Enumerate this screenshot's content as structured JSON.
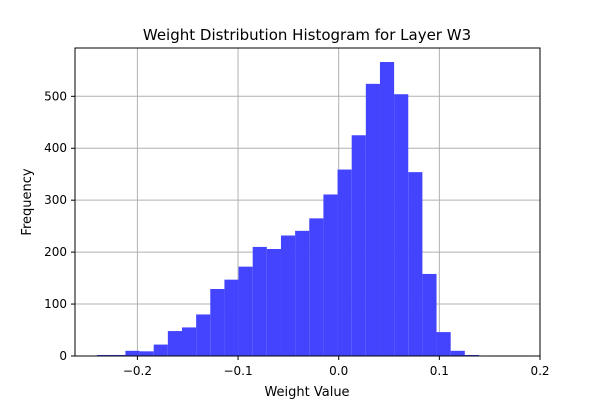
{
  "chart_data": {
    "type": "bar",
    "title": "Weight Distribution Histogram for Layer W3",
    "xlabel": "Weight Value",
    "ylabel": "Frequency",
    "xlim": [
      -0.262,
      0.2
    ],
    "ylim": [
      0,
      593
    ],
    "grid": true,
    "bar_color": "#4444ff",
    "xticks": [
      -0.2,
      -0.1,
      0.0,
      0.1,
      0.2
    ],
    "xtick_labels": [
      "−0.2",
      "−0.1",
      "0.0",
      "0.1",
      "0.2"
    ],
    "yticks": [
      0,
      100,
      200,
      300,
      400,
      500
    ],
    "ytick_labels": [
      "0",
      "100",
      "200",
      "300",
      "400",
      "500"
    ],
    "bins": {
      "start": -0.24,
      "width": 0.01405,
      "values": [
        2,
        2,
        10,
        9,
        22,
        48,
        55,
        80,
        129,
        147,
        172,
        210,
        206,
        232,
        241,
        265,
        311,
        359,
        425,
        524,
        566,
        504,
        354,
        158,
        46,
        10,
        2,
        0,
        1,
        1
      ]
    }
  }
}
